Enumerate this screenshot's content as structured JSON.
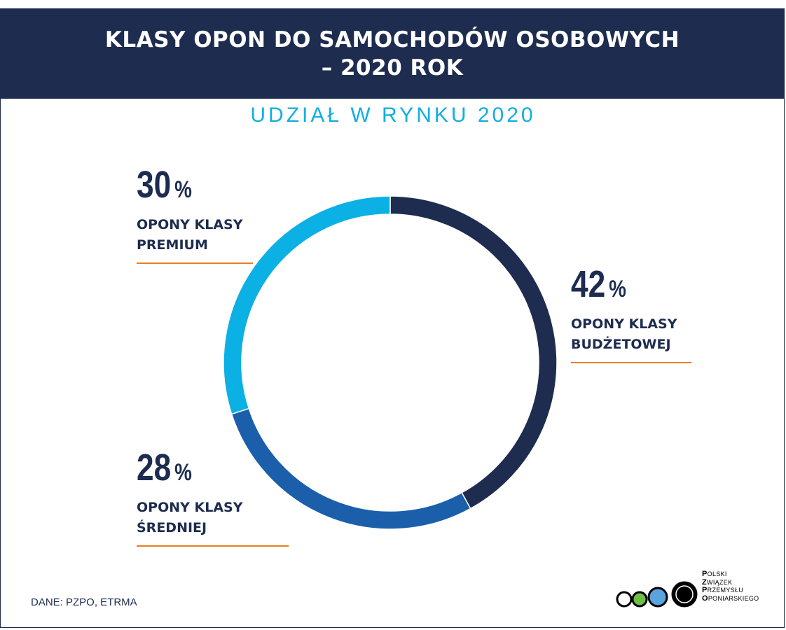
{
  "header": {
    "title_line1": "KLASY OPON DO SAMOCHODÓW OSOBOWYCH",
    "title_line2": "–  2020 ROK"
  },
  "subtitle": "UDZIAŁ W RYNKU 2020",
  "chart_data": {
    "type": "pie",
    "variant": "donut",
    "title": "UDZIAŁ W RYNKU 2020",
    "unit": "%",
    "start_angle_deg": 0,
    "direction": "clockwise",
    "slices": [
      {
        "label_line1": "OPONY KLASY",
        "label_line2": "BUDŻETOWEJ",
        "value": 42,
        "color": "#1d2c4f"
      },
      {
        "label_line1": "OPONY KLASY",
        "label_line2": "ŚREDNIEJ",
        "value": 28,
        "color": "#1b5fab"
      },
      {
        "label_line1": "OPONY KLASY",
        "label_line2": "PREMIUM",
        "value": 30,
        "color": "#0bb0e4"
      }
    ]
  },
  "colors": {
    "header_bg": "#1d2c4f",
    "subtitle": "#11aee0",
    "accent_rule": "#ec7c20",
    "logo_circles": [
      "#ffffff",
      "#6fbe44",
      "#5aa4de",
      "#000000"
    ]
  },
  "source": "DANE: PZPO, ETRMA",
  "logo": {
    "lines": [
      {
        "first": "P",
        "rest": "OLSKI"
      },
      {
        "first": "Z",
        "rest": "WIĄZEK"
      },
      {
        "first": "P",
        "rest": "RZEMYSŁU"
      },
      {
        "first": "O",
        "rest": "PONIARSKIEGO"
      }
    ]
  }
}
